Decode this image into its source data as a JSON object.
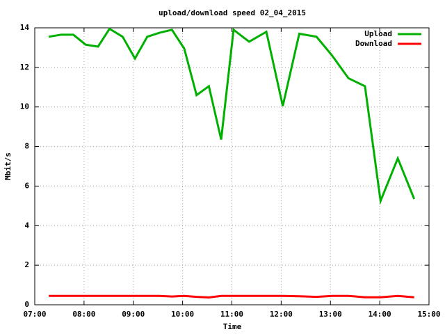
{
  "chart_data": {
    "type": "line",
    "title": "upload/download speed 02_04_2015",
    "x_label": "Time",
    "y_label": "Mbit/s",
    "x": [
      "07:17",
      "07:32",
      "07:47",
      "08:02",
      "08:17",
      "08:31",
      "08:47",
      "09:02",
      "09:17",
      "09:32",
      "09:47",
      "10:02",
      "10:17",
      "10:32",
      "10:47",
      "11:02",
      "11:21",
      "11:42",
      "12:02",
      "12:22",
      "12:43",
      "13:02",
      "13:22",
      "13:42",
      "14:01",
      "14:22",
      "14:42"
    ],
    "series": [
      {
        "name": "Upload",
        "color": "#00b000",
        "values": [
          13.55,
          13.65,
          13.65,
          13.15,
          13.05,
          13.95,
          13.55,
          12.45,
          13.55,
          13.75,
          13.9,
          12.95,
          10.6,
          11.05,
          8.35,
          13.9,
          13.3,
          13.8,
          10.05,
          13.7,
          13.55,
          12.6,
          11.45,
          11.05,
          5.25,
          7.4,
          5.35
        ]
      },
      {
        "name": "Download",
        "color": "#ff0000",
        "values": [
          0.45,
          0.45,
          0.45,
          0.45,
          0.45,
          0.45,
          0.45,
          0.45,
          0.45,
          0.45,
          0.42,
          0.45,
          0.4,
          0.37,
          0.45,
          0.45,
          0.45,
          0.45,
          0.45,
          0.43,
          0.4,
          0.45,
          0.45,
          0.38,
          0.38,
          0.45,
          0.38
        ]
      }
    ],
    "xlim": [
      "07:00",
      "15:00"
    ],
    "xticks": [
      "07:00",
      "08:00",
      "09:00",
      "10:00",
      "11:00",
      "12:00",
      "13:00",
      "14:00",
      "15:00"
    ],
    "ylim": [
      0,
      14
    ],
    "yticks": [
      0,
      2,
      4,
      6,
      8,
      10,
      12,
      14
    ],
    "grid": true,
    "legend": "top-right"
  }
}
